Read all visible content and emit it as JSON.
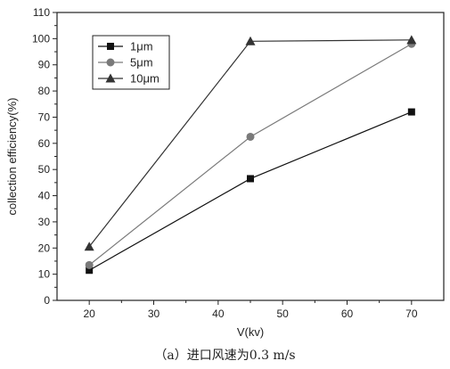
{
  "chart_data": {
    "type": "line",
    "xlabel": "V(kv)",
    "ylabel": "collection efficiency(%)",
    "xlim": [
      15,
      75
    ],
    "ylim": [
      0,
      110
    ],
    "xticks": [
      20,
      30,
      40,
      50,
      60,
      70
    ],
    "yticks": [
      0,
      10,
      20,
      30,
      40,
      50,
      60,
      70,
      80,
      90,
      100,
      110
    ],
    "grid": false,
    "legend_position": "top-left",
    "series": [
      {
        "name": "1μm",
        "marker": "square",
        "color": "#111111",
        "x": [
          20,
          45,
          70
        ],
        "values": [
          11.5,
          46.5,
          72
        ]
      },
      {
        "name": "5μm",
        "marker": "circle",
        "color": "#7a7a7a",
        "x": [
          20,
          45,
          70
        ],
        "values": [
          13.5,
          62.5,
          98
        ]
      },
      {
        "name": "10μm",
        "marker": "triangle",
        "color": "#333333",
        "x": [
          20,
          45,
          70
        ],
        "values": [
          20.5,
          99,
          99.5
        ]
      }
    ]
  },
  "caption": "（a）进口风速为0.3 m/s"
}
